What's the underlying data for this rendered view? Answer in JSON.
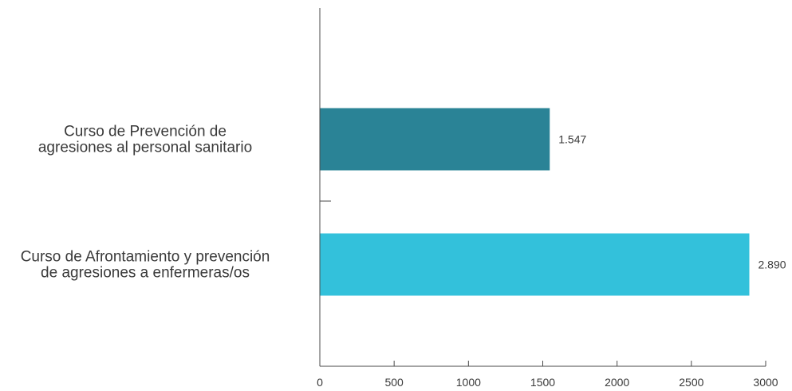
{
  "chart_data": {
    "type": "bar",
    "orientation": "horizontal",
    "title": "",
    "xlabel": "",
    "ylabel": "",
    "categories": [
      "Curso de Prevención de agresiones al personal sanitario",
      "Curso de Afrontamiento y prevención de agresiones a enfermeras/os"
    ],
    "category_lines": [
      [
        "Curso de Prevención de",
        "agresiones al personal sanitario"
      ],
      [
        "Curso de Afrontamiento y prevención",
        "de agresiones a enfermeras/os"
      ]
    ],
    "values": [
      1547,
      2890
    ],
    "value_labels": [
      "1.547",
      "2.890"
    ],
    "bar_colors": [
      "#2a8396",
      "#33c1db"
    ],
    "xlim": [
      0,
      3000
    ],
    "xticks": [
      0,
      500,
      1000,
      1500,
      2000,
      2500,
      3000
    ],
    "xtick_labels": [
      "0",
      "500",
      "1000",
      "1500",
      "2000",
      "2500",
      "3000"
    ],
    "grid": false,
    "legend": "none"
  }
}
